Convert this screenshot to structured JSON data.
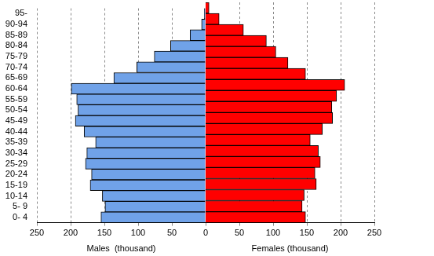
{
  "chart_data": [
    {
      "type": "bar",
      "orientation": "horizontal",
      "xlabel": "Males  (thousand)",
      "categories": [
        "0- 4",
        "5- 9",
        "10-14",
        "15-19",
        "20-24",
        "25-29",
        "30-34",
        "35-39",
        "40-44",
        "45-49",
        "50-54",
        "55-59",
        "60-64",
        "65-69",
        "70-74",
        "75-79",
        "80-84",
        "85-89",
        "90-94",
        "95-"
      ],
      "values": [
        155,
        149,
        153,
        171,
        169,
        178,
        176,
        163,
        180,
        193,
        189,
        191,
        199,
        136,
        102,
        76,
        52,
        23,
        6,
        2
      ],
      "color": "#70a2e8",
      "xlim": [
        250,
        0
      ],
      "xticks": [
        250,
        200,
        150,
        100,
        50,
        0
      ],
      "grid": true,
      "tick_labels": true
    },
    {
      "type": "bar",
      "orientation": "horizontal",
      "xlabel": "Females (thousand)",
      "categories": [
        "0- 4",
        "5- 9",
        "10-14",
        "15-19",
        "20-24",
        "25-29",
        "30-34",
        "35-39",
        "40-44",
        "45-49",
        "50-54",
        "55-59",
        "60-64",
        "65-69",
        "70-74",
        "75-79",
        "80-84",
        "85-89",
        "90-94",
        "95-"
      ],
      "values": [
        148,
        143,
        146,
        164,
        162,
        170,
        167,
        155,
        173,
        188,
        187,
        194,
        206,
        148,
        122,
        104,
        90,
        56,
        20,
        5
      ],
      "color": "#ff0000",
      "xlim": [
        0,
        250
      ],
      "xticks": [
        50,
        100,
        150,
        200,
        250
      ],
      "grid": true,
      "tick_labels": "x"
    }
  ]
}
